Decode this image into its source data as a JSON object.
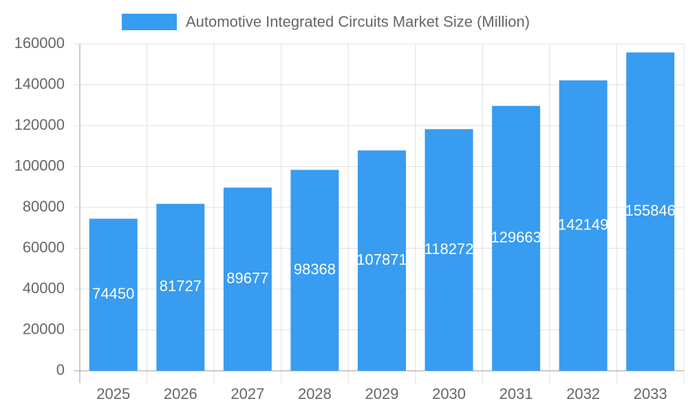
{
  "chart_data": {
    "type": "bar",
    "categories": [
      "2025",
      "2026",
      "2027",
      "2028",
      "2029",
      "2030",
      "2031",
      "2032",
      "2033"
    ],
    "series": [
      {
        "name": "Automotive Integrated Circuits Market Size (Million)",
        "color": "#389cf0",
        "values": [
          74450,
          81727,
          89677,
          98368,
          107871,
          118272,
          129663,
          142149,
          155846
        ]
      }
    ],
    "ylim": [
      0,
      160000
    ],
    "yticks": [
      0,
      20000,
      40000,
      60000,
      80000,
      100000,
      120000,
      140000,
      160000
    ],
    "grid": true,
    "legend": "top",
    "data_labels": true
  }
}
